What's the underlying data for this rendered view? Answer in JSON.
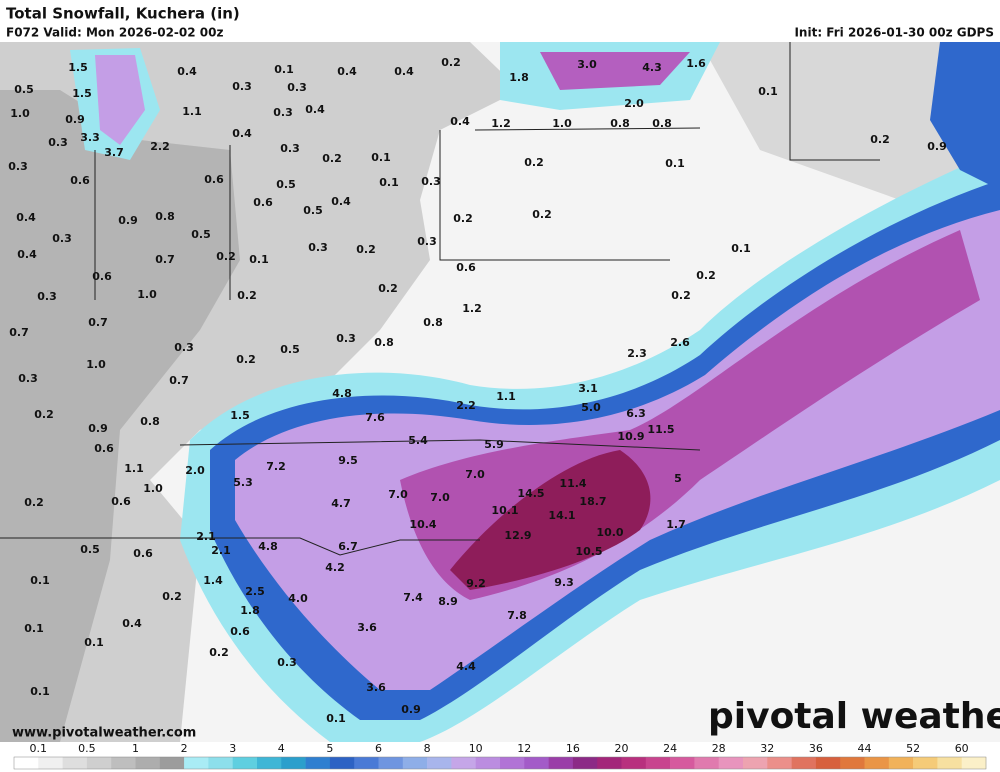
{
  "header": {
    "title": "Total Snowfall, Kuchera (in)",
    "valid": "F072 Valid: Mon 2026-02-02 00z",
    "init": "Init: Fri 2026-01-30 00z GDPS"
  },
  "map": {
    "labels": [
      "1.5",
      "0.4",
      "0.1",
      "0.4",
      "0.4",
      "0.2",
      "1.8",
      "3.0",
      "4.3",
      "1.6",
      "0.1",
      "0.5",
      "1.5",
      "0.3",
      "0.3",
      "2.0",
      "1.0",
      "0.9",
      "1.1",
      "0.3",
      "0.4",
      "0.4",
      "1.2",
      "1.0",
      "0.8",
      "0.8",
      "0.3",
      "3.3",
      "2.2",
      "0.4",
      "0.2",
      "0.9",
      "3.7",
      "0.3",
      "0.2",
      "0.1",
      "0.2",
      "0.1",
      "0.3",
      "0.6",
      "0.6",
      "0.5",
      "0.1",
      "0.3",
      "0.4",
      "0.9",
      "0.8",
      "0.6",
      "0.5",
      "0.4",
      "0.2",
      "0.2",
      "0.3",
      "0.5",
      "0.3",
      "0.4",
      "0.7",
      "0.2",
      "0.1",
      "0.3",
      "0.2",
      "0.1",
      "0.6",
      "0.6",
      "0.2",
      "0.3",
      "1.0",
      "0.2",
      "0.2",
      "0.2",
      "0.7",
      "0.7",
      "1.2",
      "0.8",
      "0.3",
      "0.8",
      "2.6",
      "0.3",
      "0.5",
      "1.0",
      "0.2",
      "2.3",
      "0.3",
      "0.7",
      "3.1",
      "4.8",
      "1.1",
      "0.2",
      "0.8",
      "1.5",
      "7.6",
      "2.2",
      "5.0",
      "6.3",
      "0.9",
      "10.9",
      "11.5",
      "0.6",
      "5.4",
      "5.9",
      "1.1",
      "2.0",
      "7.2",
      "9.5",
      "7.0",
      "11.4",
      "5",
      "5.3",
      "1.0",
      "0.2",
      "0.6",
      "4.7",
      "7.0",
      "7.0",
      "14.5",
      "18.7",
      "10.1",
      "14.1",
      "10.4",
      "10.0",
      "1.7",
      "2.1",
      "12.9",
      "4.8",
      "6.7",
      "0.5",
      "0.6",
      "2.1",
      "10.5",
      "4.2",
      "0.1",
      "1.4",
      "9.2",
      "9.3",
      "0.2",
      "2.5",
      "4.0",
      "7.4",
      "8.9",
      "1.8",
      "7.8",
      "0.1",
      "0.4",
      "0.6",
      "3.6",
      "0.1",
      "0.2",
      "0.3",
      "4.4",
      "0.1",
      "3.6",
      "0.9",
      "0.1"
    ]
  },
  "footer": {
    "url": "www.pivotalweather.com",
    "logo": "pivotal weather"
  },
  "legend": {
    "ticks": [
      0.1,
      0.5,
      1,
      2,
      3,
      4,
      5,
      6,
      8,
      10,
      12,
      16,
      20,
      24,
      28,
      32,
      36,
      44,
      52,
      60
    ],
    "colors": [
      "#ffffff",
      "#f0f0f0",
      "#dedede",
      "#cfcfcf",
      "#bebebe",
      "#adadad",
      "#9c9c9c",
      "#a9ecf5",
      "#8ddfeb",
      "#5fcfe0",
      "#3fb6d6",
      "#2b9fcc",
      "#2f7fd0",
      "#2d62c4",
      "#4a7ad6",
      "#6f95e0",
      "#8eaee8",
      "#a8b5ec",
      "#c5a6e8",
      "#bb8de0",
      "#b173d6",
      "#a35bc8",
      "#9a3ea8",
      "#8c2a86",
      "#a3267a",
      "#b8307e",
      "#c8448e",
      "#d65a9e",
      "#e07aae",
      "#e894bd",
      "#eda3b0",
      "#eb8f8a",
      "#e0735f",
      "#d7603e",
      "#e0783c",
      "#ea9546",
      "#f1b25a",
      "#f5cb78",
      "#f7e0a0",
      "#fbf0c8"
    ]
  }
}
